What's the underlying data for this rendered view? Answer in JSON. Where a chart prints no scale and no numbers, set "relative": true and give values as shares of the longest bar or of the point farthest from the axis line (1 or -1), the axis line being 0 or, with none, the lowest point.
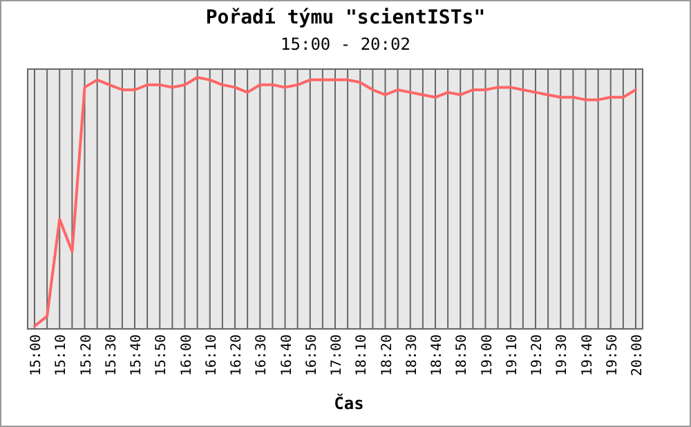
{
  "chart_data": {
    "type": "line",
    "title": "Pořadí týmu \"scientISTs\"",
    "subtitle": "15:00 - 20:02",
    "xlabel": "Čas",
    "categories": [
      "15:00",
      null,
      "15:10",
      null,
      "15:20",
      null,
      "15:30",
      null,
      "15:40",
      null,
      "15:50",
      null,
      "16:00",
      null,
      "16:10",
      null,
      "16:20",
      null,
      "16:30",
      null,
      "16:40",
      null,
      "16:50",
      null,
      "17:00",
      null,
      "18:10",
      null,
      "18:20",
      null,
      "18:30",
      null,
      "18:40",
      null,
      "18:50",
      null,
      "19:00",
      null,
      "19:10",
      null,
      "19:20",
      null,
      "19:30",
      null,
      "19:40",
      null,
      "19:50",
      null,
      "20:00"
    ],
    "relative": true,
    "grid": "x",
    "marker": "none",
    "line_style": "solid",
    "series": [
      {
        "color": "#ff6666",
        "values": [
          0,
          0.04,
          0.43,
          0.3,
          0.96,
          0.99,
          0.97,
          0.95,
          0.95,
          0.97,
          0.97,
          0.96,
          0.97,
          1,
          0.99,
          0.97,
          0.96,
          0.94,
          0.97,
          0.97,
          0.96,
          0.97,
          0.99,
          0.99,
          0.99,
          0.99,
          0.98,
          0.95,
          0.93,
          0.95,
          0.94,
          0.93,
          0.92,
          0.94,
          0.93,
          0.95,
          0.95,
          0.96,
          0.96,
          0.95,
          0.94,
          0.93,
          0.92,
          0.92,
          0.91,
          0.91,
          0.92,
          0.92,
          0.95
        ]
      }
    ]
  }
}
